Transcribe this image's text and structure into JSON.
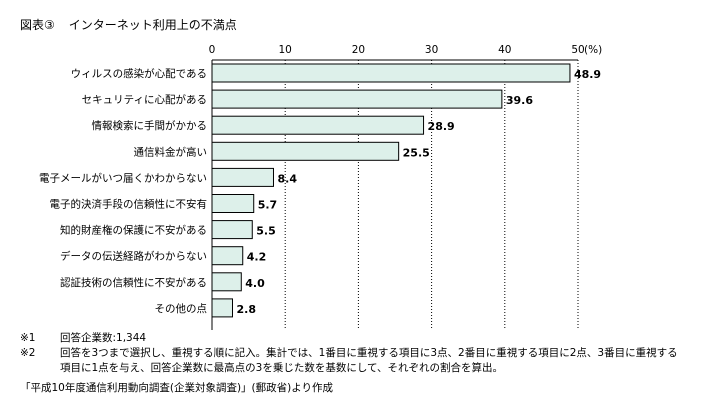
{
  "figure": {
    "label": "図表③",
    "title": "インターネット利用上の不満点"
  },
  "chart_data": {
    "type": "bar",
    "orientation": "horizontal",
    "categories": [
      "ウィルスの感染が心配である",
      "セキュリティに心配がある",
      "情報検索に手間がかかる",
      "通信料金が高い",
      "電子メールがいつ届くかわからない",
      "電子的決済手段の信頼性に不安有",
      "知的財産権の保護に不安がある",
      "データの伝送経路がわからない",
      "認証技術の信頼性に不安がある",
      "その他の点"
    ],
    "values": [
      48.9,
      39.6,
      28.9,
      25.5,
      8.4,
      5.7,
      5.5,
      4.2,
      4.0,
      2.8
    ],
    "value_labels": [
      "48.9",
      "39.6",
      "28.9",
      "25.5",
      "8.4",
      "5.7",
      "5.5",
      "4.2",
      "4.0",
      "2.8"
    ],
    "xlim": [
      0,
      50
    ],
    "ticks": [
      0,
      10,
      20,
      30,
      40,
      50
    ],
    "tick_labels": [
      "0",
      "10",
      "20",
      "30",
      "40",
      "50"
    ],
    "unit_label": "(%)",
    "grid": "vertical dotted",
    "bar_fill": "#ddf0ea",
    "bar_stroke": "#000000"
  },
  "notes": [
    {
      "mark": "※1",
      "lines": [
        "回答企業数:1,344"
      ]
    },
    {
      "mark": "※2",
      "lines": [
        "回答を3つまで選択し、重視する順に記入。集計では、1番目に重視する項目に3点、2番目に重視する項目に2点、3番目に重視する",
        "項目に1点を与え、回答企業数に最高点の3を乗じた数を基数にして、それぞれの割合を算出。"
      ]
    }
  ],
  "source": "「平成10年度通信利用動向調査(企業対象調査)」(郵政省)より作成"
}
